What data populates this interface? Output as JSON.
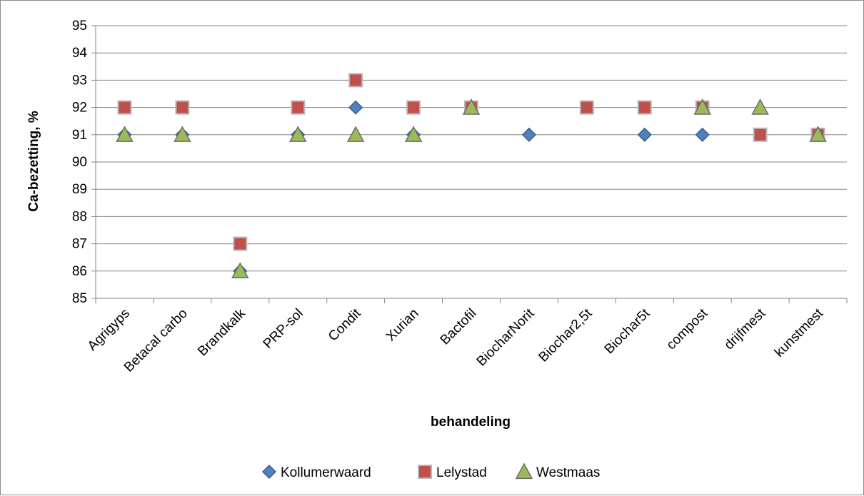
{
  "chart_data": {
    "type": "scatter",
    "title": "",
    "xlabel": "behandeling",
    "ylabel": "Ca-bezetting, %",
    "ylim": [
      85,
      95
    ],
    "y_ticks": [
      85,
      86,
      87,
      88,
      89,
      90,
      91,
      92,
      93,
      94,
      95
    ],
    "grid": true,
    "legend_position": "bottom",
    "categories": [
      "Agrigyps",
      "Betacal carbo",
      "Brandkalk",
      "PRP-sol",
      "Condit",
      "Xurian",
      "Bactofil",
      "BiocharNorit",
      "Biochar2,5t",
      "Biochar5t",
      "compost",
      "drijfmest",
      "kunstmest"
    ],
    "series": [
      {
        "name": "Kollumerwaard",
        "marker": "diamond",
        "color": "#4f81bd",
        "values": [
          91,
          91,
          86,
          91,
          92,
          91,
          92,
          91,
          null,
          91,
          91,
          null,
          91
        ]
      },
      {
        "name": "Lelystad",
        "marker": "square",
        "color": "#c0504d",
        "values": [
          92,
          92,
          87,
          92,
          93,
          92,
          92,
          null,
          92,
          92,
          92,
          91,
          91
        ]
      },
      {
        "name": "Westmaas",
        "marker": "triangle",
        "color": "#9bbb59",
        "values": [
          91,
          91,
          86,
          91,
          91,
          91,
          92,
          null,
          null,
          null,
          92,
          92,
          91
        ]
      }
    ]
  }
}
